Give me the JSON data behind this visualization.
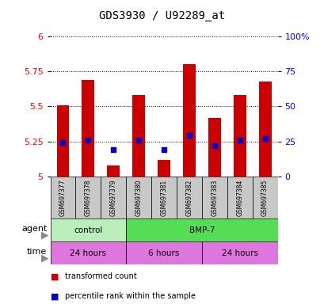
{
  "title": "GDS3930 / U92289_at",
  "samples": [
    "GSM697377",
    "GSM697378",
    "GSM697379",
    "GSM697380",
    "GSM697381",
    "GSM697382",
    "GSM697383",
    "GSM697384",
    "GSM697385"
  ],
  "bar_values": [
    5.51,
    5.69,
    5.08,
    5.58,
    5.12,
    5.8,
    5.42,
    5.58,
    5.68
  ],
  "bar_base": 5.0,
  "percentile_values": [
    5.24,
    5.26,
    5.19,
    5.26,
    5.19,
    5.29,
    5.22,
    5.26,
    5.27
  ],
  "ylim": [
    5.0,
    6.0
  ],
  "yticks_left": [
    5.0,
    5.25,
    5.5,
    5.75,
    6.0
  ],
  "yticks_right_pct": [
    0,
    25,
    50,
    75,
    100
  ],
  "yticks_right_vals": [
    5.0,
    5.25,
    5.5,
    5.75,
    6.0
  ],
  "bar_color": "#cc0000",
  "dot_color": "#0000cc",
  "label_bg_color": "#c8c8c8",
  "agent_row": [
    {
      "label": "control",
      "start": 0,
      "end": 3,
      "color": "#bbeebb"
    },
    {
      "label": "BMP-7",
      "start": 3,
      "end": 9,
      "color": "#55dd55"
    }
  ],
  "time_row": [
    {
      "label": "24 hours",
      "start": 0,
      "end": 3,
      "color": "#dd77dd"
    },
    {
      "label": "6 hours",
      "start": 3,
      "end": 6,
      "color": "#dd77dd"
    },
    {
      "label": "24 hours",
      "start": 6,
      "end": 9,
      "color": "#dd77dd"
    }
  ],
  "title_fontsize": 10,
  "tick_fontsize": 8,
  "legend_items": [
    {
      "label": "transformed count",
      "color": "#cc0000"
    },
    {
      "label": "percentile rank within the sample",
      "color": "#0000cc"
    }
  ]
}
